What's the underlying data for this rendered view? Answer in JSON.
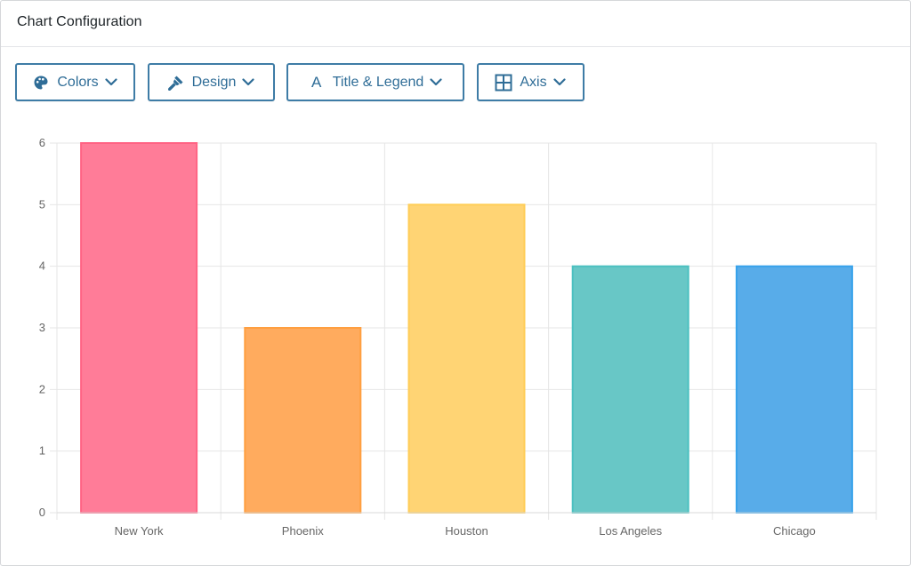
{
  "panel": {
    "title": "Chart Configuration"
  },
  "toolbar": {
    "buttons": [
      {
        "label": "Colors",
        "icon": "palette-icon"
      },
      {
        "label": "Design",
        "icon": "brush-icon"
      },
      {
        "label": "Title & Legend",
        "icon": "text-icon",
        "glyph": "A"
      },
      {
        "label": "Axis",
        "icon": "grid-icon"
      }
    ],
    "accent_color": "#2f6d97"
  },
  "chart_data": {
    "type": "bar",
    "categories": [
      "New York",
      "Phoenix",
      "Houston",
      "Los Angeles",
      "Chicago"
    ],
    "values": [
      6,
      3,
      5,
      4,
      4
    ],
    "colors": [
      {
        "fill": "#ff7c98",
        "stroke": "#ff6384"
      },
      {
        "fill": "#ffab5e",
        "stroke": "#ff9f40"
      },
      {
        "fill": "#ffd474",
        "stroke": "#ffcd56"
      },
      {
        "fill": "#68c7c6",
        "stroke": "#4bc0c0"
      },
      {
        "fill": "#58ace9",
        "stroke": "#36a2eb"
      }
    ],
    "yticks": [
      "0",
      "1",
      "2",
      "3",
      "4",
      "5",
      "6"
    ],
    "ylim": [
      0,
      6
    ],
    "grid": true,
    "title": "",
    "xlabel": "",
    "ylabel": ""
  }
}
